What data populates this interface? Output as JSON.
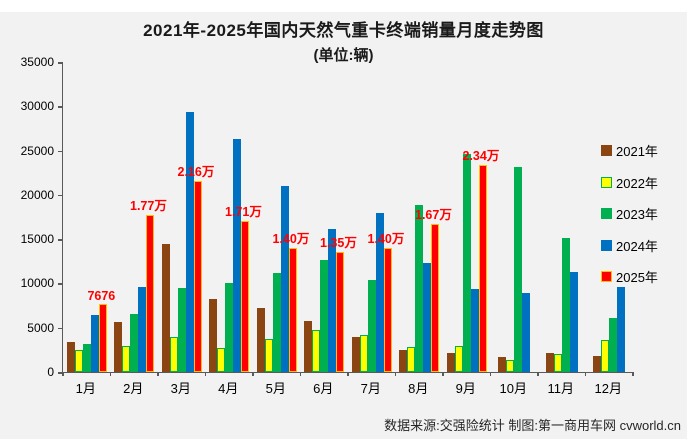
{
  "title": "2021年-2025年国内天然气重卡终端销量月度走势图",
  "subtitle": "(单位:辆)",
  "source": "数据来源:交强险统计  制图:第一商用车网 cvworld.cn",
  "colors": {
    "brown_2021": "#8B4513",
    "yellow_2022": "#FFFF00",
    "yellow_2022_border": "#00B050",
    "green_2023": "#00B050",
    "blue_2024": "#0070C0",
    "red_2025": "#FF0000",
    "red_2025_border": "#FFC000",
    "data_label": "#FF0000",
    "axis": "#595959"
  },
  "chart_data": {
    "type": "bar",
    "title": "2021年-2025年国内天然气重卡终端销量月度走势图",
    "subtitle": "(单位:辆)",
    "xlabel": "",
    "ylabel": "",
    "ylim": [
      0,
      35000
    ],
    "yticks": [
      0,
      5000,
      10000,
      15000,
      20000,
      25000,
      30000,
      35000
    ],
    "grid": false,
    "legend_position": "right",
    "categories": [
      "1月",
      "2月",
      "3月",
      "4月",
      "5月",
      "6月",
      "7月",
      "8月",
      "9月",
      "10月",
      "11月",
      "12月"
    ],
    "series": [
      {
        "name": "2021年",
        "color": "#8B4513",
        "border": null,
        "values": [
          3400,
          5700,
          14500,
          8300,
          7200,
          5800,
          3900,
          2500,
          2100,
          1700,
          2200,
          1800
        ]
      },
      {
        "name": "2022年",
        "color": "#FFFF00",
        "border": "#00B050",
        "values": [
          2500,
          2900,
          3900,
          2700,
          3700,
          4700,
          4200,
          2800,
          2900,
          1400,
          2000,
          3600
        ]
      },
      {
        "name": "2023年",
        "color": "#00B050",
        "border": null,
        "values": [
          3200,
          6500,
          9500,
          10100,
          11200,
          12600,
          10400,
          18900,
          24600,
          23200,
          15100,
          6100
        ]
      },
      {
        "name": "2024年",
        "color": "#0070C0",
        "border": null,
        "values": [
          6400,
          9600,
          29400,
          26300,
          21000,
          16100,
          17900,
          12300,
          9400,
          8900,
          11300,
          9600
        ]
      },
      {
        "name": "2025年",
        "color": "#FF0000",
        "border": "#FFC000",
        "values": [
          7676,
          17700,
          21600,
          17100,
          14000,
          13500,
          14000,
          16700,
          23400,
          null,
          null,
          null
        ],
        "labels": [
          "7676",
          "1.77万",
          "2.16万",
          "1.71万",
          "1.40万",
          "1.35万",
          "1.40万",
          "1.67万",
          "2.34万",
          "",
          "",
          ""
        ]
      }
    ]
  }
}
